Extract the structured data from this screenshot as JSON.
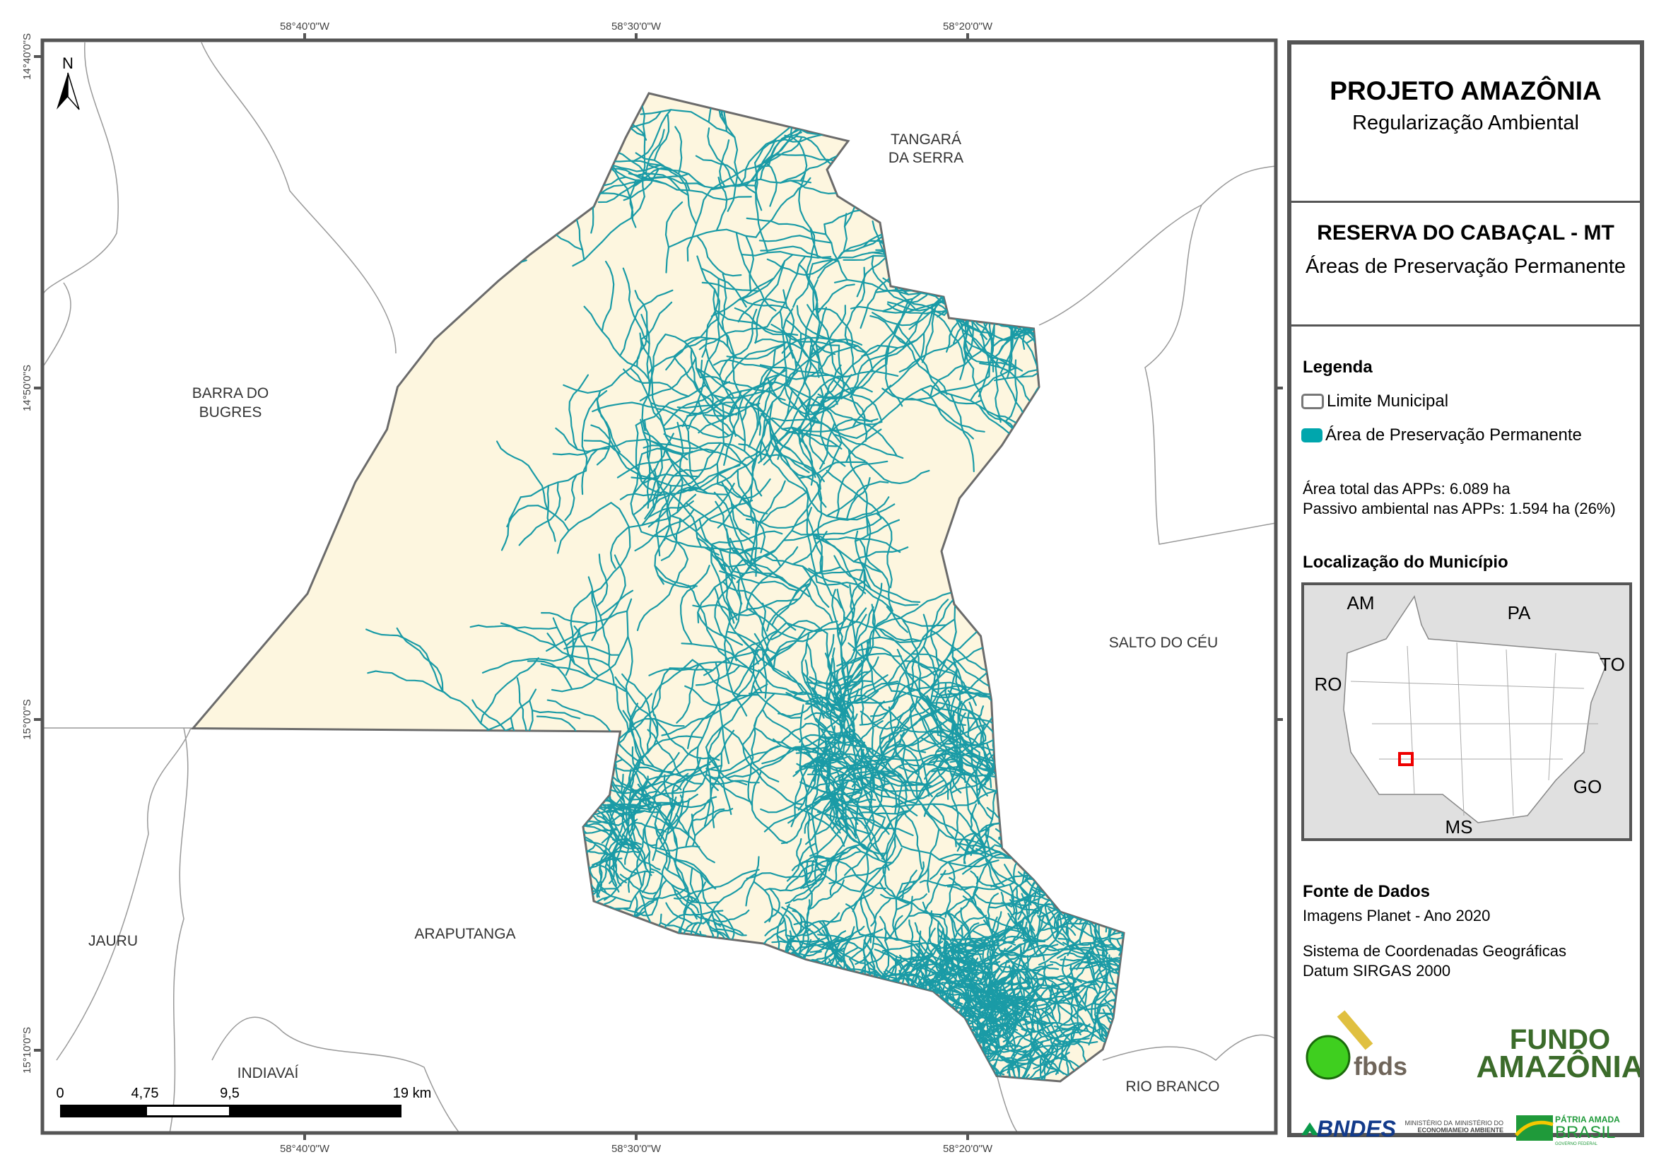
{
  "map": {
    "top_ticks": [
      "58°40'0\"W",
      "58°30'0\"W",
      "58°20'0\"W"
    ],
    "bottom_ticks": [
      "58°40'0\"W",
      "58°30'0\"W",
      "58°20'0\"W"
    ],
    "left_ticks": [
      "14°40'0\"S",
      "14°50'0\"S",
      "15°0'0\"S",
      "15°10'0\"S"
    ],
    "north_label": "N",
    "places": {
      "tangara1": "TANGARÁ",
      "tangara2": "DA SERRA",
      "barra1": "BARRA DO",
      "barra2": "BUGRES",
      "salto": "SALTO DO CÉU",
      "arapu": "ARAPUTANGA",
      "jauru": "JAURU",
      "indiavai": "INDIAVAÍ",
      "rio_branco": "RIO BRANCO"
    },
    "scale": {
      "labels": [
        "0",
        "4,75",
        "9,5",
        "19 km"
      ]
    },
    "colors": {
      "municipality_fill": "#fdf6df",
      "boundary": "#6b6b6b",
      "app": "#1a9ba6",
      "frame": "#555555"
    }
  },
  "panel": {
    "title": "PROJETO AMAZÔNIA",
    "subtitle": "Regularização Ambiental",
    "place_title": "RESERVA DO CABAÇAL - MT",
    "theme": "Áreas de Preservação Permanente",
    "legend_title": "Legenda",
    "legend": [
      {
        "label": "Limite Municipal",
        "color": "#ffffff"
      },
      {
        "label": "Área de Preservação Permanente",
        "color": "#00a6ad"
      }
    ],
    "stats": [
      "Área total das APPs: 6.089 ha",
      "Passivo ambiental nas APPs: 1.594 ha (26%)"
    ],
    "location_title": "Localização do Município",
    "inset_labels": {
      "am": "AM",
      "pa": "PA",
      "to": "TO",
      "ro": "RO",
      "go": "GO",
      "ms": "MS"
    },
    "sources_title": "Fonte de Dados",
    "sources": [
      "Imagens Planet - Ano 2020"
    ],
    "crs": [
      "Sistema de Coordenadas Geográficas",
      "Datum SIRGAS 2000"
    ],
    "logos": {
      "fbds": "fbds",
      "fundo1": "FUNDO",
      "fundo2": "AMAZÔNIA",
      "bndes": "BNDES",
      "min1a": "MINISTÉRIO DA",
      "min1b": "ECONOMIA",
      "min2a": "MINISTÉRIO DO",
      "min2b": "MEIO AMBIENTE",
      "gov1": "PÁTRIA AMADA",
      "gov2": "BRASIL",
      "gov3": "GOVERNO FEDERAL"
    }
  }
}
